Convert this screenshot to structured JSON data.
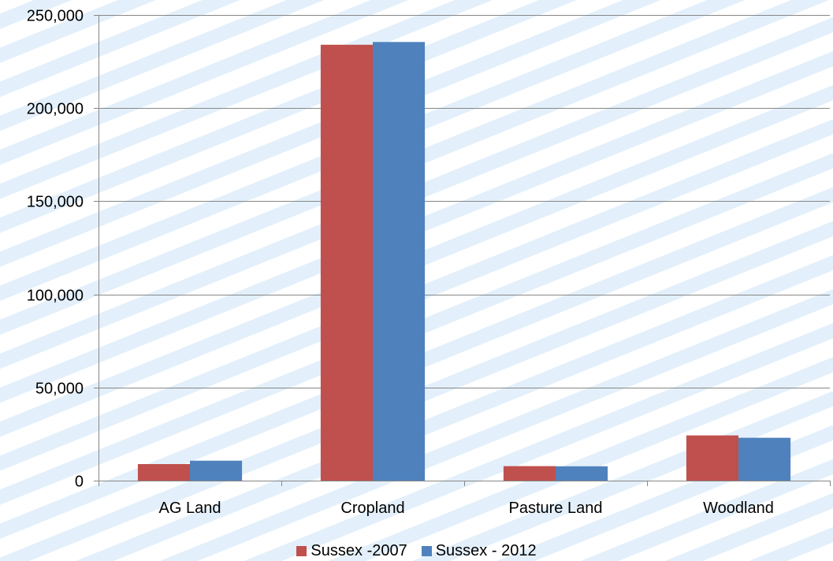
{
  "chart_data": {
    "type": "bar",
    "title": "",
    "xlabel": "",
    "ylabel": "",
    "categories": [
      "AG Land",
      "Cropland",
      "Pasture Land",
      "Woodland"
    ],
    "series": [
      {
        "name": "Sussex -2007",
        "color": "#c0504d",
        "values": [
          8900,
          234000,
          7800,
          24300
        ]
      },
      {
        "name": "Sussex - 2012",
        "color": "#4f81bd",
        "values": [
          10700,
          235500,
          7700,
          23000
        ]
      }
    ],
    "ylim": [
      0,
      250000
    ],
    "yticks": [
      0,
      50000,
      100000,
      150000,
      200000,
      250000
    ],
    "ytick_labels": [
      "0",
      "50,000",
      "100,000",
      "150,000",
      "200,000",
      "250,000"
    ],
    "grid": true,
    "legend_position": "bottom"
  }
}
